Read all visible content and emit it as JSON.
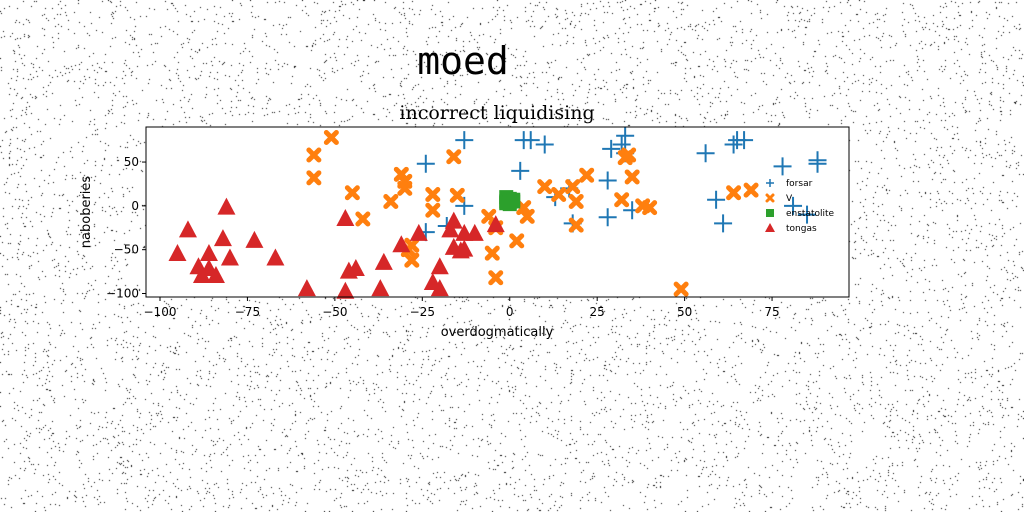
{
  "chart_data": {
    "type": "scatter",
    "suptitle": "moed",
    "title": "incorrect liquidising",
    "xlabel": "overdogmatically",
    "ylabel": "naboberies",
    "xlim": [
      -104,
      97
    ],
    "ylim": [
      -104,
      90
    ],
    "xticks": [
      -100,
      -75,
      -50,
      -25,
      0,
      25,
      50,
      75
    ],
    "yticks": [
      -100,
      -50,
      0,
      50
    ],
    "legend_position": "right",
    "series": [
      {
        "name": "forsar",
        "marker": "plus",
        "color": "#1f77b4",
        "points": [
          [
            -24,
            48
          ],
          [
            -13,
            75
          ],
          [
            -13,
            0
          ],
          [
            -18,
            -23
          ],
          [
            -24,
            -30
          ],
          [
            3,
            40
          ],
          [
            4,
            75
          ],
          [
            6,
            75
          ],
          [
            10,
            70
          ],
          [
            13,
            10
          ],
          [
            17,
            20
          ],
          [
            18,
            -20
          ],
          [
            28,
            -13
          ],
          [
            28,
            29
          ],
          [
            29,
            65
          ],
          [
            32,
            70
          ],
          [
            33,
            80
          ],
          [
            33,
            60
          ],
          [
            35,
            -5
          ],
          [
            56,
            60
          ],
          [
            59,
            7
          ],
          [
            61,
            -20
          ],
          [
            64,
            70
          ],
          [
            65,
            75
          ],
          [
            67,
            75
          ],
          [
            78,
            45
          ],
          [
            81,
            0
          ],
          [
            85,
            -10
          ],
          [
            88,
            48
          ],
          [
            88,
            52
          ]
        ]
      },
      {
        "name": "V",
        "marker": "x",
        "color": "#ff7f0e",
        "points": [
          [
            -56,
            32
          ],
          [
            -56,
            58
          ],
          [
            -51,
            78
          ],
          [
            -45,
            15
          ],
          [
            -42,
            -15
          ],
          [
            -34,
            5
          ],
          [
            -31,
            36
          ],
          [
            -30,
            28
          ],
          [
            -30,
            20
          ],
          [
            -29,
            -50
          ],
          [
            -28,
            -45
          ],
          [
            -28,
            -62
          ],
          [
            -22,
            -5
          ],
          [
            -22,
            13
          ],
          [
            -16,
            56
          ],
          [
            -15,
            12
          ],
          [
            -6,
            -12
          ],
          [
            -5,
            -54
          ],
          [
            -4,
            -82
          ],
          [
            -4,
            -25
          ],
          [
            2,
            -40
          ],
          [
            4,
            -2
          ],
          [
            5,
            -12
          ],
          [
            10,
            22
          ],
          [
            14,
            13
          ],
          [
            18,
            22
          ],
          [
            19,
            5
          ],
          [
            19,
            -22
          ],
          [
            22,
            35
          ],
          [
            32,
            7
          ],
          [
            33,
            55
          ],
          [
            34,
            58
          ],
          [
            35,
            33
          ],
          [
            38,
            0
          ],
          [
            40,
            -2
          ],
          [
            49,
            -95
          ],
          [
            64,
            15
          ],
          [
            69,
            18
          ]
        ]
      },
      {
        "name": "enstatolite",
        "marker": "square",
        "color": "#2ca02c",
        "points": [
          [
            -1,
            5
          ],
          [
            0,
            2
          ],
          [
            1,
            7
          ],
          [
            -1,
            10
          ],
          [
            0,
            8
          ],
          [
            1,
            5
          ],
          [
            -1,
            3
          ],
          [
            0,
            4
          ]
        ]
      },
      {
        "name": "tongas",
        "marker": "triangle",
        "color": "#d62728",
        "points": [
          [
            -95,
            -55
          ],
          [
            -92,
            -28
          ],
          [
            -89,
            -70
          ],
          [
            -88,
            -80
          ],
          [
            -86,
            -72
          ],
          [
            -86,
            -55
          ],
          [
            -84,
            -80
          ],
          [
            -82,
            -38
          ],
          [
            -81,
            -2
          ],
          [
            -80,
            -60
          ],
          [
            -73,
            -40
          ],
          [
            -67,
            -60
          ],
          [
            -58,
            -95
          ],
          [
            -47,
            -15
          ],
          [
            -47,
            -98
          ],
          [
            -46,
            -75
          ],
          [
            -44,
            -72
          ],
          [
            -37,
            -95
          ],
          [
            -36,
            -65
          ],
          [
            -31,
            -45
          ],
          [
            -26,
            -32
          ],
          [
            -22,
            -88
          ],
          [
            -20,
            -95
          ],
          [
            -20,
            -70
          ],
          [
            -17,
            -28
          ],
          [
            -16,
            -18
          ],
          [
            -16,
            -48
          ],
          [
            -14,
            -52
          ],
          [
            -13,
            -32
          ],
          [
            -13,
            -50
          ],
          [
            -10,
            -32
          ],
          [
            -4,
            -22
          ]
        ]
      }
    ]
  }
}
